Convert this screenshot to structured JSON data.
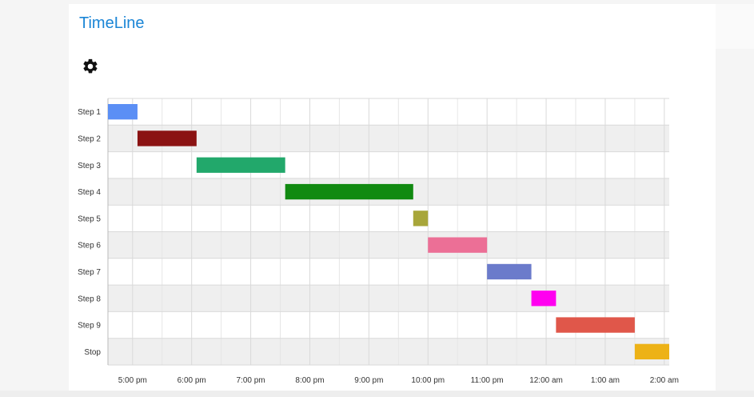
{
  "app": {
    "title": "TimeLine"
  },
  "icons": {
    "settings": "gear-icon"
  },
  "chart_data": {
    "type": "timeline",
    "rows": [
      "Step 1",
      "Step 2",
      "Step 3",
      "Step 4",
      "Step 5",
      "Step 6",
      "Step 7",
      "Step 8",
      "Step 9",
      "Stop"
    ],
    "bars": [
      {
        "row": "Step 1",
        "start": "16:35",
        "end": "17:05",
        "color": "#5b8ff5"
      },
      {
        "row": "Step 2",
        "start": "17:05",
        "end": "18:05",
        "color": "#8b1313"
      },
      {
        "row": "Step 3",
        "start": "18:05",
        "end": "19:35",
        "color": "#22a86b"
      },
      {
        "row": "Step 4",
        "start": "19:35",
        "end": "21:45",
        "color": "#118a11"
      },
      {
        "row": "Step 5",
        "start": "21:45",
        "end": "22:00",
        "color": "#a8a63a"
      },
      {
        "row": "Step 6",
        "start": "22:00",
        "end": "23:00",
        "color": "#ec6f96"
      },
      {
        "row": "Step 7",
        "start": "23:00",
        "end": "23:45",
        "color": "#6b7bcb"
      },
      {
        "row": "Step 8",
        "start": "23:45",
        "end": "24:10",
        "color": "#ff00f0"
      },
      {
        "row": "Step 9",
        "start": "24:10",
        "end": "25:30",
        "color": "#e0574a"
      },
      {
        "row": "Stop",
        "start": "25:30",
        "end": "26:05",
        "color": "#edb216"
      }
    ],
    "x_ticks": [
      "5:00 pm",
      "6:00 pm",
      "7:00 pm",
      "8:00 pm",
      "9:00 pm",
      "10:00 pm",
      "11:00 pm",
      "12:00 am",
      "1:00 am",
      "2:00 am"
    ],
    "x_range": [
      "16:35",
      "26:05"
    ],
    "grid": true,
    "row_shading": [
      "#ffffff",
      "#efefef"
    ]
  }
}
